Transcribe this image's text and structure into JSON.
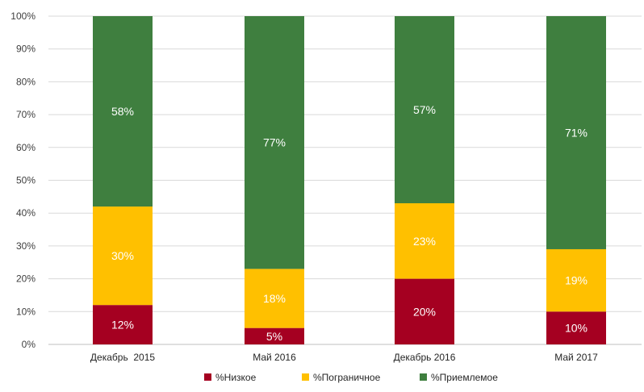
{
  "chart_data": {
    "type": "bar",
    "stacked": true,
    "categories": [
      "Декабрь  2015",
      "Май 2016",
      "Декабрь 2016",
      "Май 2017"
    ],
    "series": [
      {
        "name": "%Низкое",
        "values": [
          12,
          5,
          20,
          10
        ],
        "color": "#A50021"
      },
      {
        "name": "%Пограничное",
        "values": [
          30,
          18,
          23,
          19
        ],
        "color": "#FFC000"
      },
      {
        "name": "%Приемлемое",
        "values": [
          58,
          77,
          57,
          71
        ],
        "color": "#3F7F3F"
      }
    ],
    "data_labels": [
      [
        "12%",
        "5%",
        "20%",
        "10%"
      ],
      [
        "30%",
        "18%",
        "23%",
        "19%"
      ],
      [
        "58%",
        "77%",
        "57%",
        "71%"
      ]
    ],
    "yticks": [
      "0%",
      "10%",
      "20%",
      "30%",
      "40%",
      "50%",
      "60%",
      "70%",
      "80%",
      "90%",
      "100%"
    ],
    "ylim": [
      0,
      100
    ],
    "grid": true,
    "legend": "bottom-center",
    "title": "",
    "xlabel": "",
    "ylabel": ""
  }
}
